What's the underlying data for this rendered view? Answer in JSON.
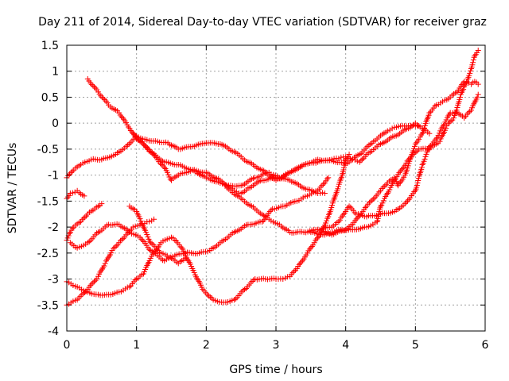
{
  "chart_data": {
    "type": "scatter",
    "title": "Day 211 of 2014, Sidereal Day-to-day VTEC variation (SDTVAR) for receiver graz",
    "xlabel": "GPS time / hours",
    "ylabel": "SDTVAR / TECUs",
    "xlim": [
      0,
      6
    ],
    "ylim": [
      -4,
      1.5
    ],
    "xticks": [
      "0",
      "1",
      "2",
      "3",
      "4",
      "5",
      "6"
    ],
    "yticks": [
      "-4",
      "-3.5",
      "-3",
      "-2.5",
      "-2",
      "-1.5",
      "-1",
      "-0.5",
      "0",
      "0.5",
      "1",
      "1.5"
    ],
    "xtick_values": [
      0,
      1,
      2,
      3,
      4,
      5,
      6
    ],
    "ytick_values": [
      -4,
      -3.5,
      -3,
      -2.5,
      -2,
      -1.5,
      -1,
      -0.5,
      0,
      0.5,
      1,
      1.5
    ],
    "grid": true,
    "marker": "+",
    "color": "#ff0000",
    "series": [
      {
        "points": [
          [
            0.0,
            -1.05
          ],
          [
            0.1,
            -0.9
          ],
          [
            0.2,
            -0.8
          ],
          [
            0.35,
            -0.7
          ],
          [
            0.5,
            -0.7
          ],
          [
            0.7,
            -0.6
          ],
          [
            0.85,
            -0.45
          ],
          [
            1.0,
            -0.25
          ],
          [
            1.15,
            -0.32
          ],
          [
            1.3,
            -0.35
          ],
          [
            1.45,
            -0.38
          ],
          [
            1.6,
            -0.5
          ],
          [
            1.8,
            -0.45
          ],
          [
            2.0,
            -0.38
          ],
          [
            2.2,
            -0.4
          ],
          [
            2.4,
            -0.55
          ],
          [
            2.6,
            -0.75
          ],
          [
            2.8,
            -0.9
          ],
          [
            3.0,
            -1.1
          ],
          [
            3.2,
            -0.95
          ],
          [
            3.4,
            -0.8
          ],
          [
            3.6,
            -0.7
          ],
          [
            3.8,
            -0.72
          ],
          [
            4.0,
            -0.78
          ],
          [
            4.2,
            -0.6
          ],
          [
            4.4,
            -0.35
          ],
          [
            4.6,
            -0.15
          ],
          [
            4.7,
            -0.08
          ],
          [
            4.9,
            -0.05
          ],
          [
            5.0,
            -0.05
          ],
          [
            5.1,
            -0.1
          ],
          [
            5.2,
            -0.2
          ]
        ]
      },
      {
        "points": [
          [
            0.3,
            0.85
          ],
          [
            0.45,
            0.6
          ],
          [
            0.6,
            0.35
          ],
          [
            0.75,
            0.2
          ],
          [
            0.9,
            -0.1
          ],
          [
            1.0,
            -0.3
          ],
          [
            1.1,
            -0.4
          ],
          [
            1.2,
            -0.55
          ],
          [
            1.4,
            -0.85
          ],
          [
            1.5,
            -1.1
          ],
          [
            1.6,
            -1.0
          ],
          [
            1.8,
            -0.9
          ],
          [
            2.0,
            -0.95
          ],
          [
            2.2,
            -1.1
          ],
          [
            2.4,
            -1.3
          ],
          [
            2.5,
            -1.35
          ],
          [
            2.6,
            -1.25
          ],
          [
            2.8,
            -1.1
          ],
          [
            3.0,
            -1.05
          ],
          [
            3.2,
            -1.1
          ],
          [
            3.4,
            -1.25
          ],
          [
            3.6,
            -1.35
          ],
          [
            3.7,
            -1.35
          ]
        ]
      },
      {
        "points": [
          [
            0.95,
            -0.2
          ],
          [
            1.05,
            -0.35
          ],
          [
            1.2,
            -0.55
          ],
          [
            1.4,
            -0.75
          ],
          [
            1.6,
            -0.8
          ],
          [
            1.8,
            -0.9
          ],
          [
            2.0,
            -1.05
          ],
          [
            2.2,
            -1.15
          ],
          [
            2.35,
            -1.2
          ],
          [
            2.5,
            -1.2
          ],
          [
            2.7,
            -1.05
          ],
          [
            2.9,
            -0.95
          ],
          [
            3.05,
            -1.05
          ],
          [
            3.2,
            -0.95
          ],
          [
            3.4,
            -0.8
          ],
          [
            3.6,
            -0.75
          ],
          [
            3.8,
            -0.7
          ],
          [
            3.9,
            -0.68
          ],
          [
            4.0,
            -0.65
          ],
          [
            4.1,
            -0.7
          ],
          [
            4.2,
            -0.75
          ],
          [
            4.3,
            -0.6
          ],
          [
            4.5,
            -0.4
          ],
          [
            4.7,
            -0.25
          ],
          [
            4.9,
            -0.1
          ],
          [
            5.0,
            0.0
          ],
          [
            5.05,
            -0.05
          ]
        ]
      },
      {
        "points": [
          [
            0.0,
            -1.45
          ],
          [
            0.05,
            -1.35
          ],
          [
            0.15,
            -1.3
          ],
          [
            0.25,
            -1.4
          ]
        ]
      },
      {
        "points": [
          [
            0.0,
            -2.25
          ],
          [
            0.05,
            -2.1
          ],
          [
            0.1,
            -2.0
          ],
          [
            0.2,
            -1.9
          ],
          [
            0.3,
            -1.75
          ],
          [
            0.4,
            -1.65
          ],
          [
            0.5,
            -1.55
          ]
        ]
      },
      {
        "points": [
          [
            0.05,
            -2.3
          ],
          [
            0.15,
            -2.4
          ],
          [
            0.3,
            -2.3
          ],
          [
            0.45,
            -2.1
          ],
          [
            0.6,
            -1.95
          ],
          [
            0.75,
            -1.95
          ],
          [
            0.9,
            -2.1
          ],
          [
            1.05,
            -2.2
          ],
          [
            1.2,
            -2.45
          ],
          [
            1.4,
            -2.65
          ],
          [
            1.55,
            -2.55
          ],
          [
            1.7,
            -2.5
          ],
          [
            1.9,
            -2.5
          ],
          [
            2.05,
            -2.45
          ],
          [
            2.2,
            -2.3
          ],
          [
            2.4,
            -2.1
          ],
          [
            2.6,
            -1.95
          ],
          [
            2.8,
            -1.9
          ],
          [
            2.95,
            -1.65
          ],
          [
            3.1,
            -1.6
          ],
          [
            3.3,
            -1.5
          ],
          [
            3.45,
            -1.4
          ],
          [
            3.6,
            -1.3
          ],
          [
            3.7,
            -1.15
          ],
          [
            3.75,
            -1.05
          ]
        ]
      },
      {
        "points": [
          [
            0.0,
            -3.5
          ],
          [
            0.15,
            -3.4
          ],
          [
            0.3,
            -3.2
          ],
          [
            0.45,
            -2.95
          ],
          [
            0.55,
            -2.7
          ],
          [
            0.65,
            -2.45
          ],
          [
            0.75,
            -2.3
          ],
          [
            0.85,
            -2.15
          ],
          [
            0.95,
            -2.0
          ],
          [
            1.05,
            -1.95
          ],
          [
            1.15,
            -1.9
          ],
          [
            1.25,
            -1.85
          ]
        ]
      },
      {
        "points": [
          [
            0.0,
            -3.05
          ],
          [
            0.15,
            -3.15
          ],
          [
            0.3,
            -3.25
          ],
          [
            0.45,
            -3.3
          ],
          [
            0.6,
            -3.3
          ],
          [
            0.75,
            -3.25
          ],
          [
            0.9,
            -3.15
          ],
          [
            1.0,
            -3.0
          ],
          [
            1.1,
            -2.9
          ],
          [
            1.2,
            -2.6
          ],
          [
            1.35,
            -2.3
          ],
          [
            1.5,
            -2.2
          ],
          [
            1.55,
            -2.25
          ],
          [
            1.65,
            -2.4
          ],
          [
            1.8,
            -2.8
          ],
          [
            1.95,
            -3.2
          ],
          [
            2.1,
            -3.4
          ],
          [
            2.25,
            -3.45
          ],
          [
            2.4,
            -3.4
          ],
          [
            2.55,
            -3.2
          ],
          [
            2.7,
            -3.0
          ],
          [
            2.85,
            -3.0
          ],
          [
            3.0,
            -3.0
          ],
          [
            3.1,
            -3.0
          ],
          [
            3.2,
            -2.95
          ],
          [
            3.3,
            -2.8
          ],
          [
            3.45,
            -2.5
          ],
          [
            3.55,
            -2.3
          ],
          [
            3.65,
            -2.1
          ],
          [
            3.75,
            -1.8
          ],
          [
            3.85,
            -1.4
          ],
          [
            3.95,
            -1.0
          ],
          [
            4.0,
            -0.7
          ],
          [
            4.05,
            -0.6
          ]
        ]
      },
      {
        "points": [
          [
            0.9,
            -1.6
          ],
          [
            1.0,
            -1.7
          ],
          [
            1.1,
            -2.0
          ],
          [
            1.2,
            -2.3
          ],
          [
            1.35,
            -2.5
          ],
          [
            1.5,
            -2.6
          ],
          [
            1.6,
            -2.7
          ],
          [
            1.7,
            -2.6
          ]
        ]
      },
      {
        "points": [
          [
            2.3,
            -1.25
          ],
          [
            2.5,
            -1.45
          ],
          [
            2.7,
            -1.65
          ],
          [
            2.9,
            -1.85
          ],
          [
            3.05,
            -1.95
          ],
          [
            3.2,
            -2.1
          ],
          [
            3.4,
            -2.1
          ],
          [
            3.6,
            -2.05
          ],
          [
            3.8,
            -2.0
          ],
          [
            3.9,
            -1.9
          ],
          [
            4.0,
            -1.7
          ],
          [
            4.05,
            -1.6
          ],
          [
            4.15,
            -1.75
          ],
          [
            4.3,
            -1.8
          ],
          [
            4.5,
            -1.75
          ],
          [
            4.7,
            -1.7
          ],
          [
            4.85,
            -1.55
          ],
          [
            5.0,
            -1.3
          ],
          [
            5.1,
            -0.8
          ],
          [
            5.2,
            -0.45
          ],
          [
            5.3,
            -0.3
          ],
          [
            5.4,
            -0.05
          ],
          [
            5.5,
            0.2
          ],
          [
            5.6,
            0.2
          ],
          [
            5.7,
            0.1
          ],
          [
            5.8,
            0.25
          ],
          [
            5.9,
            0.55
          ]
        ]
      },
      {
        "points": [
          [
            3.6,
            -2.05
          ],
          [
            3.8,
            -2.15
          ],
          [
            4.0,
            -2.05
          ],
          [
            4.1,
            -1.95
          ],
          [
            4.3,
            -1.6
          ],
          [
            4.5,
            -1.3
          ],
          [
            4.6,
            -1.15
          ],
          [
            4.7,
            -1.05
          ],
          [
            4.75,
            -1.2
          ],
          [
            4.85,
            -1.0
          ],
          [
            4.95,
            -0.6
          ],
          [
            5.0,
            -0.4
          ],
          [
            5.1,
            -0.2
          ],
          [
            5.2,
            0.2
          ],
          [
            5.3,
            0.35
          ],
          [
            5.45,
            0.45
          ],
          [
            5.6,
            0.6
          ],
          [
            5.7,
            0.8
          ],
          [
            5.8,
            0.75
          ],
          [
            5.85,
            0.8
          ],
          [
            5.9,
            0.75
          ]
        ]
      },
      {
        "points": [
          [
            3.5,
            -2.1
          ],
          [
            3.7,
            -2.15
          ],
          [
            3.9,
            -2.05
          ],
          [
            4.1,
            -2.05
          ],
          [
            4.3,
            -2.0
          ],
          [
            4.45,
            -1.9
          ],
          [
            4.5,
            -1.6
          ],
          [
            4.6,
            -1.35
          ],
          [
            4.7,
            -1.1
          ],
          [
            4.9,
            -0.7
          ],
          [
            5.05,
            -0.5
          ],
          [
            5.2,
            -0.5
          ],
          [
            5.35,
            -0.35
          ],
          [
            5.45,
            -0.05
          ],
          [
            5.55,
            0.1
          ],
          [
            5.6,
            0.3
          ],
          [
            5.65,
            0.55
          ],
          [
            5.7,
            0.7
          ],
          [
            5.75,
            0.85
          ],
          [
            5.8,
            1.05
          ],
          [
            5.85,
            1.3
          ],
          [
            5.9,
            1.4
          ]
        ]
      }
    ]
  }
}
